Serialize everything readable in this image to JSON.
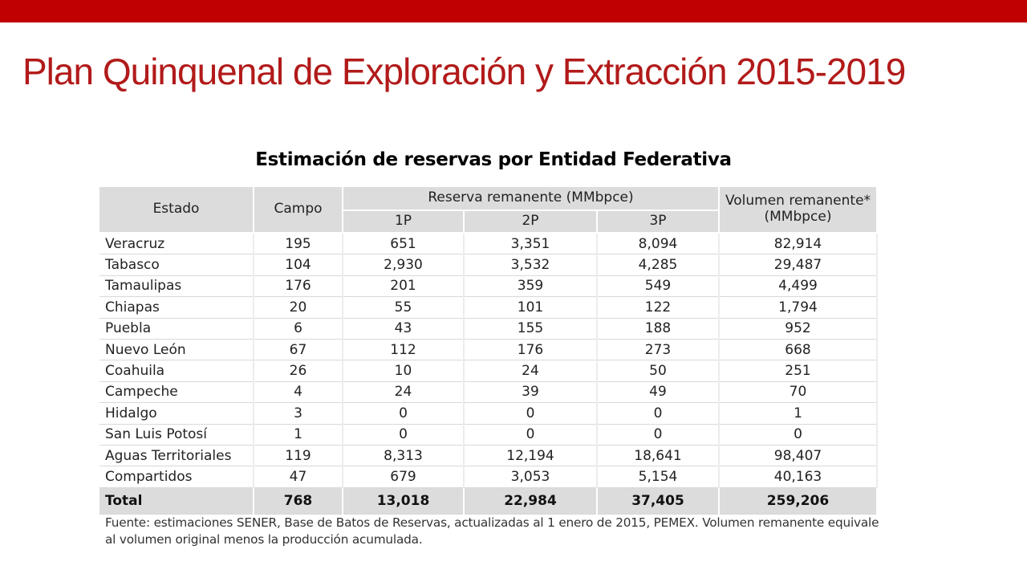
{
  "slide": {
    "title": "Plan Quinquenal de Exploración y Extracción 2015-2019",
    "accent_color": "#c00000",
    "title_color": "#b21a1a"
  },
  "table": {
    "title": "Estimación de reservas por Entidad Federativa",
    "headers": {
      "estado": "Estado",
      "campo": "Campo",
      "reserva_group": "Reserva remanente (MMbpce)",
      "p1": "1P",
      "p2": "2P",
      "p3": "3P",
      "volumen_line1": "Volumen remanente*",
      "volumen_line2": "(MMbpce)"
    },
    "rows": [
      [
        "Veracruz",
        "195",
        "651",
        "3,351",
        "8,094",
        "82,914"
      ],
      [
        "Tabasco",
        "104",
        "2,930",
        "3,532",
        "4,285",
        "29,487"
      ],
      [
        "Tamaulipas",
        "176",
        "201",
        "359",
        "549",
        "4,499"
      ],
      [
        "Chiapas",
        "20",
        "55",
        "101",
        "122",
        "1,794"
      ],
      [
        "Puebla",
        "6",
        "43",
        "155",
        "188",
        "952"
      ],
      [
        "Nuevo León",
        "67",
        "112",
        "176",
        "273",
        "668"
      ],
      [
        "Coahuila",
        "26",
        "10",
        "24",
        "50",
        "251"
      ],
      [
        "Campeche",
        "4",
        "24",
        "39",
        "49",
        "70"
      ],
      [
        "Hidalgo",
        "3",
        "0",
        "0",
        "0",
        "1"
      ],
      [
        "San Luis Potosí",
        "1",
        "0",
        "0",
        "0",
        "0"
      ],
      [
        "Aguas Territoriales",
        "119",
        "8,313",
        "12,194",
        "18,641",
        "98,407"
      ],
      [
        "Compartidos",
        "47",
        "679",
        "3,053",
        "5,154",
        "40,163"
      ]
    ],
    "total": [
      "Total",
      "768",
      "13,018",
      "22,984",
      "37,405",
      "259,206"
    ],
    "source_note": "Fuente: estimaciones SENER, Base de Batos de Reservas, actualizadas al 1 enero de 2015, PEMEX. Volumen remanente equivale al volumen original menos la producción acumulada."
  }
}
